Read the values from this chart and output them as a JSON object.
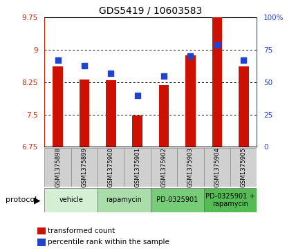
{
  "title": "GDS5419 / 10603583",
  "samples": [
    "GSM1375898",
    "GSM1375899",
    "GSM1375900",
    "GSM1375901",
    "GSM1375902",
    "GSM1375903",
    "GSM1375904",
    "GSM1375905"
  ],
  "red_values": [
    8.62,
    8.32,
    8.3,
    7.47,
    8.18,
    8.88,
    9.75,
    8.62
  ],
  "blue_values": [
    67,
    63,
    57,
    40,
    55,
    70,
    79,
    67
  ],
  "ylim_left": [
    6.75,
    9.75
  ],
  "ylim_right": [
    0,
    100
  ],
  "yticks_left": [
    6.75,
    7.5,
    8.25,
    9.0,
    9.75
  ],
  "yticks_right": [
    0,
    25,
    50,
    75,
    100
  ],
  "ytick_labels_left": [
    "6.75",
    "7.5",
    "8.25",
    "9",
    "9.75"
  ],
  "ytick_labels_right": [
    "0",
    "25",
    "50",
    "75",
    "100%"
  ],
  "protocols": [
    {
      "label": "vehicle",
      "start": 0,
      "end": 2,
      "color": "#d4f0d4"
    },
    {
      "label": "rapamycin",
      "start": 2,
      "end": 4,
      "color": "#aaddaa"
    },
    {
      "label": "PD-0325901",
      "start": 4,
      "end": 6,
      "color": "#77cc77"
    },
    {
      "label": "PD-0325901 +\nrapamycin",
      "start": 6,
      "end": 8,
      "color": "#55bb55"
    }
  ],
  "bar_color": "#cc1100",
  "dot_color": "#2244cc",
  "bar_width": 0.38,
  "dot_size": 28,
  "background_plot": "#ffffff",
  "background_label": "#d0d0d0",
  "left_axis_color": "#cc2200",
  "right_axis_color": "#2244cc",
  "protocol_label_color": "#000000",
  "legend_red_label": "transformed count",
  "legend_blue_label": "percentile rank within the sample"
}
